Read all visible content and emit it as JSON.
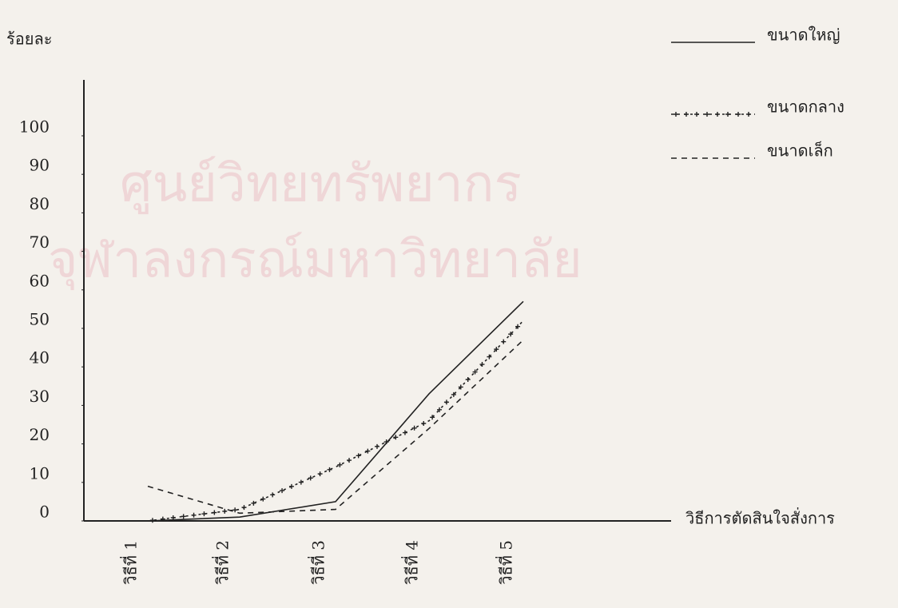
{
  "chart_data": {
    "type": "line",
    "y_label": "ร้อยละ",
    "x_label": "วิธีการตัดสินใจสั่งการ",
    "watermark": [
      "ศูนย์วิทยทรัพยากร",
      "จุฬาลงกรณ์มหาวิทยาลัย"
    ],
    "categories": [
      "วิธีที่ 1",
      "วิธีที่ 2",
      "วิธีที่ 3",
      "วิธีที่ 4",
      "วิธีที่ 5"
    ],
    "series": [
      {
        "name": "ขนาดใหญ่",
        "style": "solid",
        "color": "#222222",
        "values": [
          0,
          1,
          5,
          33,
          57
        ]
      },
      {
        "name": "ขนาดกลาง",
        "style": "plus",
        "color": "#222222",
        "values": [
          0,
          3,
          14,
          26,
          52
        ]
      },
      {
        "name": "ขนาดเล็ก",
        "style": "dashed",
        "color": "#222222",
        "values": [
          9,
          2,
          3,
          24,
          47
        ]
      }
    ],
    "ylim": [
      0,
      100
    ],
    "yticks": [
      0,
      10,
      20,
      30,
      40,
      50,
      60,
      70,
      80,
      90,
      100
    ]
  }
}
